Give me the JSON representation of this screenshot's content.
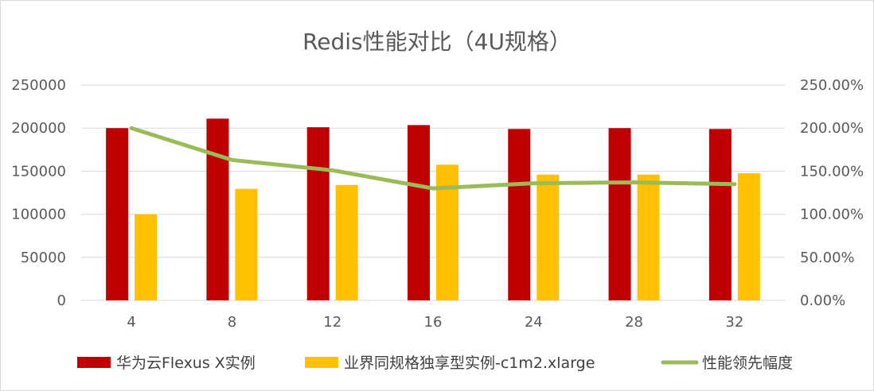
{
  "chart_data": {
    "type": "bar",
    "title": "Redis性能对比（4U规格）",
    "categories": [
      "4",
      "8",
      "12",
      "16",
      "24",
      "28",
      "32"
    ],
    "series": [
      {
        "name": "华为云Flexus X实例",
        "kind": "bar",
        "axis": "left",
        "color": "#C00000",
        "values": [
          200000,
          211000,
          201000,
          203500,
          199000,
          200000,
          199000
        ]
      },
      {
        "name": "业界同规格独享型实例-c1m2.xlarge",
        "kind": "bar",
        "axis": "left",
        "color": "#FFC000",
        "values": [
          100000,
          129500,
          134000,
          157500,
          146000,
          146000,
          147500
        ]
      },
      {
        "name": "性能领先幅度",
        "kind": "line",
        "axis": "right",
        "color": "#9BBB59",
        "values": [
          2.0,
          1.63,
          1.51,
          1.3,
          1.36,
          1.37,
          1.35
        ]
      }
    ],
    "y_left": {
      "min": 0,
      "max": 250000,
      "ticks": [
        "0",
        "50000",
        "100000",
        "150000",
        "200000",
        "250000"
      ]
    },
    "y_right": {
      "min": 0,
      "max": 2.5,
      "ticks": [
        "0.00%",
        "50.00%",
        "100.00%",
        "150.00%",
        "200.00%",
        "250.00%"
      ]
    },
    "grid": true,
    "legend_position": "bottom"
  }
}
